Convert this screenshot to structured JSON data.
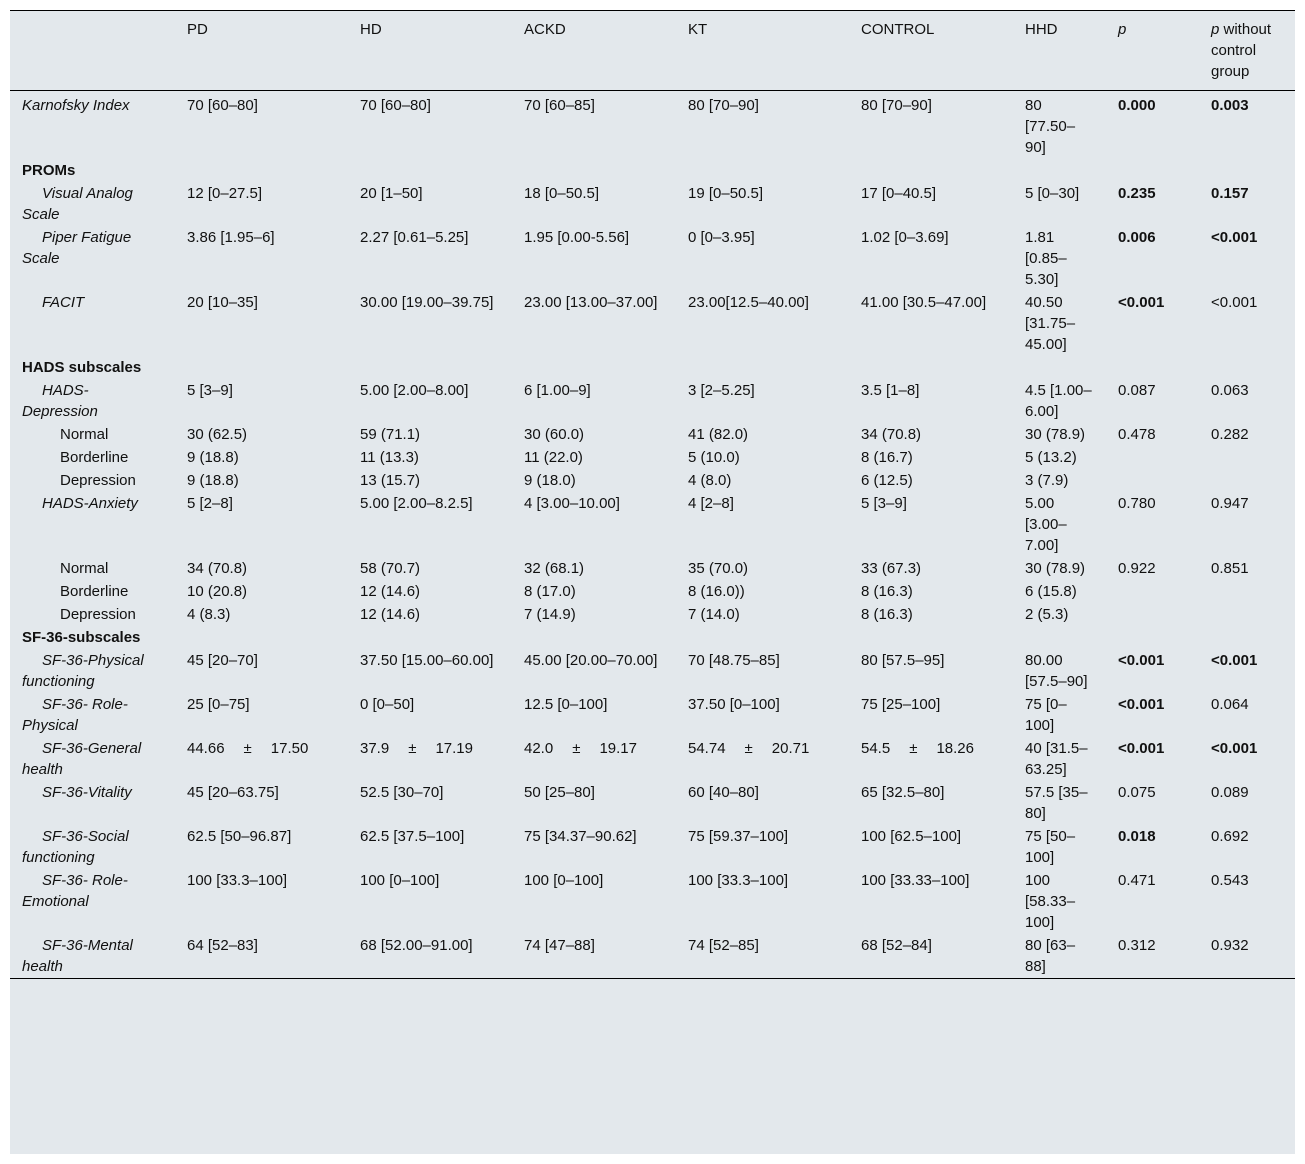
{
  "headers": [
    "",
    "PD",
    "HD",
    "ACKD",
    "KT",
    "CONTROL",
    "HHD",
    "p",
    "p without control group"
  ],
  "header_p_suffix": "without control group",
  "rows": [
    {
      "type": "row",
      "label": "Karnofsky Index",
      "style": "top",
      "cells": [
        "70 [60–80]",
        "70 [60–80]",
        "70 [60–85]",
        "80 [70–90]",
        "80 [70–90]",
        "80 [77.50–90]",
        "0.000",
        "0.003"
      ],
      "bold": [
        true,
        true
      ]
    },
    {
      "type": "section",
      "label": "PROMs"
    },
    {
      "type": "row",
      "label": "Visual Analog Scale",
      "style": "sub",
      "cells": [
        "12 [0–27.5]",
        "20 [1–50]",
        "18 [0–50.5]",
        "19 [0–50.5]",
        "17 [0–40.5]",
        "5 [0–30]",
        "0.235",
        "0.157"
      ],
      "bold": [
        true,
        true
      ]
    },
    {
      "type": "row",
      "label": "Piper Fatigue Scale",
      "style": "sub",
      "cells": [
        "3.86 [1.95–6]",
        "2.27 [0.61–5.25]",
        "1.95 [0.00-5.56]",
        "0 [0–3.95]",
        "1.02 [0–3.69]",
        "1.81 [0.85–5.30]",
        "0.006",
        "<0.001"
      ],
      "bold": [
        true,
        true
      ]
    },
    {
      "type": "row",
      "label": "FACIT",
      "style": "sub",
      "cells": [
        "20 [10–35]",
        "30.00 [19.00–39.75]",
        "23.00 [13.00–37.00]",
        "23.00[12.5–40.00]",
        "41.00 [30.5–47.00]",
        "40.50 [31.75–45.00]",
        "<0.001",
        "<0.001"
      ],
      "bold": [
        true,
        false
      ]
    },
    {
      "type": "section",
      "label": "HADS subscales"
    },
    {
      "type": "row",
      "label": "HADS-Depression",
      "style": "sub",
      "cells": [
        "5 [3–9]",
        "5.00 [2.00–8.00]",
        "6 [1.00–9]",
        "3 [2–5.25]",
        "3.5 [1–8]",
        "4.5 [1.00–6.00]",
        "0.087",
        "0.063"
      ],
      "bold": [
        false,
        false
      ]
    },
    {
      "type": "row",
      "label": "Normal",
      "style": "subsub",
      "cells": [
        "30 (62.5)",
        "59 (71.1)",
        "30 (60.0)",
        "41 (82.0)",
        "34 (70.8)",
        "30 (78.9)",
        "0.478",
        "0.282"
      ],
      "bold": [
        false,
        false
      ]
    },
    {
      "type": "row",
      "label": "Borderline",
      "style": "subsub",
      "cells": [
        "9 (18.8)",
        "11 (13.3)",
        "11 (22.0)",
        "5 (10.0)",
        "8 (16.7)",
        "5 (13.2)",
        "",
        ""
      ],
      "bold": [
        false,
        false
      ]
    },
    {
      "type": "row",
      "label": "Depression",
      "style": "subsub",
      "cells": [
        "9 (18.8)",
        "13 (15.7)",
        "9 (18.0)",
        "4 (8.0)",
        "6 (12.5)",
        "3 (7.9)",
        "",
        ""
      ],
      "bold": [
        false,
        false
      ]
    },
    {
      "type": "row",
      "label": "HADS-Anxiety",
      "style": "sub",
      "cells": [
        "5 [2–8]",
        "5.00 [2.00–8.2.5]",
        "4 [3.00–10.00]",
        "4 [2–8]",
        "5 [3–9]",
        "5.00 [3.00–7.00]",
        "0.780",
        "0.947"
      ],
      "bold": [
        false,
        false
      ]
    },
    {
      "type": "row",
      "label": "Normal",
      "style": "subsub",
      "cells": [
        "34 (70.8)",
        "58 (70.7)",
        "32 (68.1)",
        "35 (70.0)",
        "33 (67.3)",
        "30 (78.9)",
        "0.922",
        "0.851"
      ],
      "bold": [
        false,
        false
      ]
    },
    {
      "type": "row",
      "label": "Borderline",
      "style": "subsub",
      "cells": [
        "10 (20.8)",
        "12 (14.6)",
        "8 (17.0)",
        "8 (16.0))",
        "8 (16.3)",
        "6 (15.8)",
        "",
        ""
      ],
      "bold": [
        false,
        false
      ]
    },
    {
      "type": "row",
      "label": "Depression",
      "style": "subsub",
      "cells": [
        "4 (8.3)",
        "12 (14.6)",
        "7 (14.9)",
        "7 (14.0)",
        "8 (16.3)",
        "2 (5.3)",
        "",
        ""
      ],
      "bold": [
        false,
        false
      ]
    },
    {
      "type": "section",
      "label": "SF-36-subscales"
    },
    {
      "type": "row",
      "label": "SF-36-Physical functioning",
      "style": "sub",
      "cells": [
        "45 [20–70]",
        "37.50 [15.00–60.00]",
        "45.00 [20.00–70.00]",
        "70 [48.75–85]",
        "80 [57.5–95]",
        "80.00 [57.5–90]",
        "<0.001",
        "<0.001"
      ],
      "bold": [
        true,
        true
      ]
    },
    {
      "type": "row",
      "label": "SF-36- Role-Physical",
      "style": "sub",
      "cells": [
        "25 [0–75]",
        "0 [0–50]",
        "12.5 [0–100]",
        "37.50 [0–100]",
        "75 [25–100]",
        "75 [0–100]",
        "<0.001",
        "0.064"
      ],
      "bold": [
        true,
        false
      ]
    },
    {
      "type": "row",
      "label": "SF-36-General health",
      "style": "sub",
      "pm": true,
      "cells": [
        "44.66|±|17.50",
        "37.9|±|17.19",
        "42.0|±|19.17",
        "54.74|±|20.71",
        "54.5|±|18.26",
        "40 [31.5–63.25]",
        "<0.001",
        "<0.001"
      ],
      "bold": [
        true,
        true
      ]
    },
    {
      "type": "row",
      "label": "SF-36-Vitality",
      "style": "sub",
      "cells": [
        "45 [20–63.75]",
        "52.5 [30–70]",
        "50 [25–80]",
        "60 [40–80]",
        "65 [32.5–80]",
        "57.5 [35–80]",
        "0.075",
        "0.089"
      ],
      "bold": [
        false,
        false
      ]
    },
    {
      "type": "row",
      "label": "SF-36-Social functioning",
      "style": "sub",
      "cells": [
        "62.5 [50–96.87]",
        "62.5 [37.5–100]",
        "75 [34.37–90.62]",
        "75 [59.37–100]",
        "100 [62.5–100]",
        "75 [50–100]",
        "0.018",
        "0.692"
      ],
      "bold": [
        true,
        false
      ]
    },
    {
      "type": "row",
      "label": "SF-36- Role-Emotional",
      "style": "sub",
      "cells": [
        "100 [33.3–100]",
        "100 [0–100]",
        "100 [0–100]",
        "100 [33.3–100]",
        "100 [33.33–100]",
        "100 [58.33–100]",
        "0.471",
        "0.543"
      ],
      "bold": [
        false,
        false
      ]
    },
    {
      "type": "row",
      "label": "SF-36-Mental health",
      "style": "sub",
      "cells": [
        "64 [52–83]",
        "68 [52.00–91.00]",
        "74 [47–88]",
        "74 [52–85]",
        "68 [52–84]",
        "80 [63–88]",
        "0.312",
        "0.932"
      ],
      "bold": [
        false,
        false
      ]
    }
  ]
}
